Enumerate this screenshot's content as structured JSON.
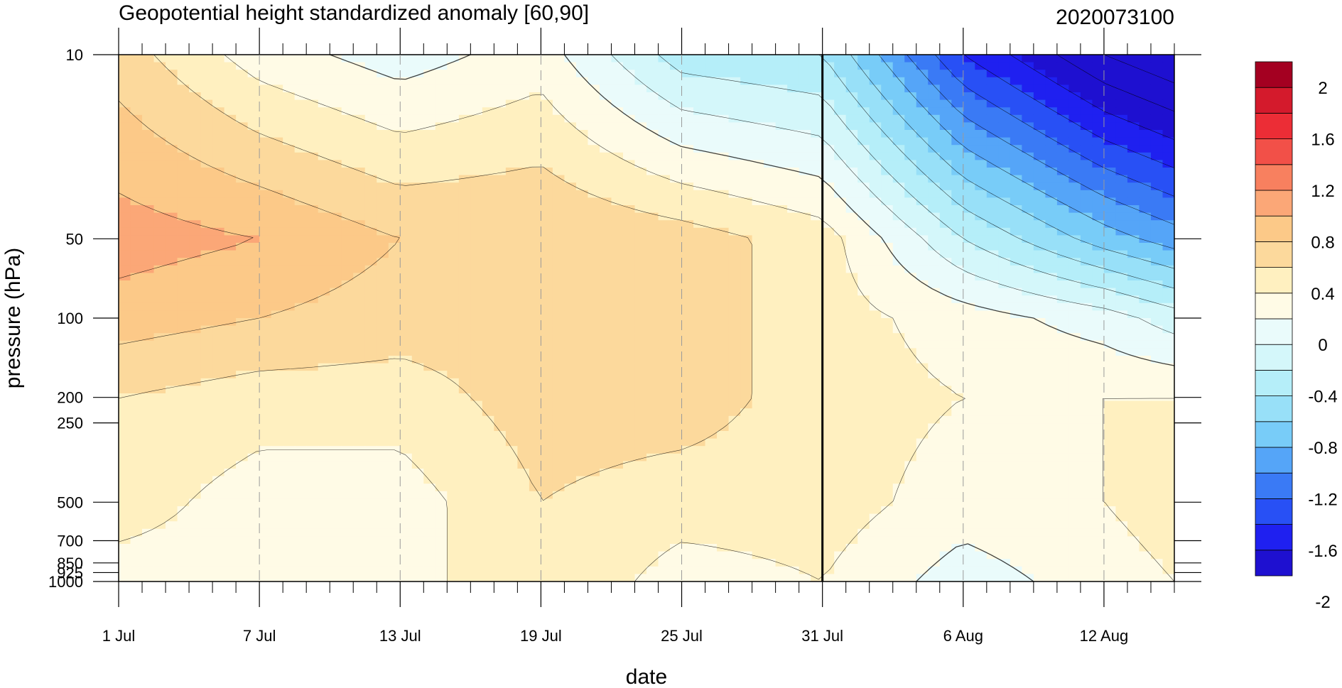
{
  "chart_data": {
    "type": "heatmap",
    "title": "Geopotential height standardized anomaly [60,90]",
    "subtitle": "2020073100",
    "xlabel": "date",
    "ylabel": "pressure (hPa)",
    "x_unit": "day",
    "x_range": [
      "1 Jul",
      "15 Aug"
    ],
    "x_ticks": [
      {
        "label": "1 Jul",
        "day": 1
      },
      {
        "label": "7 Jul",
        "day": 7
      },
      {
        "label": "13 Jul",
        "day": 13
      },
      {
        "label": "19 Jul",
        "day": 19
      },
      {
        "label": "25 Jul",
        "day": 25
      },
      {
        "label": "31 Jul",
        "day": 31
      },
      {
        "label": "6 Aug",
        "day": 37
      },
      {
        "label": "12 Aug",
        "day": 43
      }
    ],
    "y_scale": "log",
    "y_reversed": true,
    "ylim": [
      1000,
      10
    ],
    "y_ticks": [
      10,
      50,
      100,
      200,
      250,
      500,
      700,
      850,
      925,
      1000
    ],
    "y_tick_labels": [
      "10",
      "50",
      "100",
      "200",
      "250",
      "500",
      "700",
      "850",
      "925",
      "1000"
    ],
    "forecast_start_day": 31,
    "levels": [
      -2.2,
      -2.0,
      -1.8,
      -1.6,
      -1.4,
      -1.2,
      -1.0,
      -0.8,
      -0.6,
      -0.4,
      -0.2,
      0,
      0.2,
      0.4,
      0.6,
      0.8,
      1.0,
      1.2,
      1.4,
      1.6,
      1.8,
      2.0,
      2.2
    ],
    "colorbar_labels": [
      "2",
      "1.6",
      "1.2",
      "0.8",
      "0.4",
      "0",
      "-0.4",
      "-0.8",
      "-1.2",
      "-1.6",
      "-2"
    ],
    "colorbar_colors_bottom_to_top": [
      "#1e10d0",
      "#1f20f0",
      "#2850f5",
      "#3a7af5",
      "#55a5f8",
      "#78ccf8",
      "#98e0f8",
      "#b5eef9",
      "#d4f7fa",
      "#eafbfb",
      "#fffbe6",
      "#fff0c0",
      "#fcd99c",
      "#fcc988",
      "#fba777",
      "#f8805f",
      "#f25048",
      "#ec2d36",
      "#d41a2c",
      "#a40021"
    ],
    "sample_values": {
      "columns_days": [
        1,
        7,
        13,
        19,
        25,
        31,
        37,
        43,
        46
      ],
      "rows_hPa": [
        10,
        50,
        100,
        200,
        500,
        1000
      ],
      "values": [
        [
          0.5,
          0.1,
          -0.1,
          0.1,
          -0.5,
          -0.6,
          -1.6,
          -2.2,
          -2.4
        ],
        [
          0.9,
          0.8,
          0.6,
          0.6,
          0.5,
          0.3,
          -0.4,
          -0.9,
          -1.1
        ],
        [
          0.7,
          0.6,
          0.5,
          0.5,
          0.5,
          0.3,
          0.1,
          -0.1,
          -0.3
        ],
        [
          0.4,
          0.3,
          0.3,
          0.5,
          0.5,
          0.3,
          0.2,
          0.2,
          0.2
        ],
        [
          0.3,
          0.1,
          0.1,
          0.4,
          0.3,
          0.3,
          0.1,
          0.2,
          0.3
        ],
        [
          0.1,
          0.1,
          0.1,
          0.4,
          0.1,
          0.2,
          -0.1,
          0.1,
          0.2
        ]
      ]
    }
  }
}
